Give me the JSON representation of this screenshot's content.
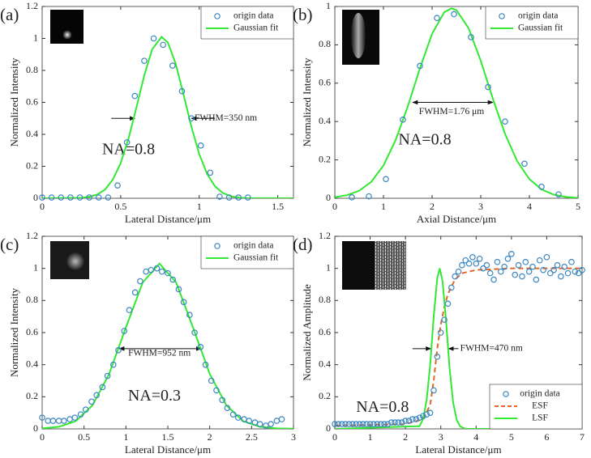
{
  "chart_data": [
    {
      "type": "scatter",
      "panel_label": "(a)",
      "xlabel": "Lateral Distance/μm",
      "ylabel": "Normalized Intensity",
      "xlim": [
        0,
        1.6
      ],
      "xticks": [
        0,
        0.5,
        1,
        1.5
      ],
      "ylim": [
        0,
        1.2
      ],
      "yticks": [
        0,
        0.2,
        0.4,
        0.6,
        0.8,
        1,
        1.2
      ],
      "legend": "upper right",
      "note": "NA=0.8",
      "fwhm_label": "FWHM=350 nm",
      "series": [
        {
          "name": "origin data",
          "kind": "marker",
          "color": "#3a86c0",
          "x": [
            0,
            0.06,
            0.12,
            0.18,
            0.24,
            0.3,
            0.36,
            0.42,
            0.48,
            0.54,
            0.59,
            0.65,
            0.71,
            0.77,
            0.83,
            0.89,
            0.95,
            1.01,
            1.07,
            1.13,
            1.19,
            1.25,
            1.31
          ],
          "values": [
            0.005,
            0.005,
            0.005,
            0.005,
            0.005,
            0.005,
            0.005,
            0.005,
            0.08,
            0.35,
            0.64,
            0.86,
            1.0,
            0.96,
            0.83,
            0.67,
            0.5,
            0.33,
            0.16,
            0.01,
            0.005,
            0.005,
            0.005
          ]
        },
        {
          "name": "Gaussian fit",
          "kind": "line",
          "color": "#33e833",
          "x": [
            0,
            0.25,
            0.3,
            0.35,
            0.4,
            0.45,
            0.5,
            0.55,
            0.6,
            0.65,
            0.7,
            0.76,
            0.8,
            0.85,
            0.9,
            0.95,
            1.0,
            1.05,
            1.1,
            1.15,
            1.2,
            1.25,
            1.3,
            1.6
          ],
          "values": [
            0,
            0.003,
            0.009,
            0.023,
            0.054,
            0.117,
            0.22,
            0.374,
            0.567,
            0.769,
            0.931,
            1.01,
            0.975,
            0.842,
            0.65,
            0.448,
            0.276,
            0.152,
            0.075,
            0.033,
            0.013,
            0.0045,
            0.001,
            0
          ]
        }
      ]
    },
    {
      "type": "scatter",
      "panel_label": "(b)",
      "xlabel": "Axial Distance/μm",
      "ylabel": "Normalized Intensity",
      "xlim": [
        0,
        5
      ],
      "xticks": [
        0,
        1,
        2,
        3,
        4,
        5
      ],
      "ylim": [
        0,
        1
      ],
      "yticks": [
        0,
        0.2,
        0.4,
        0.6,
        0.8,
        1
      ],
      "legend": "upper right",
      "note": "NA=0.8",
      "fwhm_label": "FWHM=1.76 μm",
      "series": [
        {
          "name": "origin data",
          "kind": "marker",
          "color": "#3a86c0",
          "x": [
            0.35,
            0.7,
            1.05,
            1.4,
            1.75,
            2.1,
            2.45,
            2.8,
            3.15,
            3.5,
            3.9,
            4.25,
            4.6
          ],
          "values": [
            0.005,
            0.01,
            0.1,
            0.41,
            0.69,
            0.94,
            0.96,
            0.84,
            0.58,
            0.4,
            0.18,
            0.06,
            0.02
          ]
        },
        {
          "name": "Gaussian fit",
          "kind": "line",
          "color": "#33e833",
          "x": [
            0,
            0.25,
            0.5,
            0.75,
            1,
            1.25,
            1.5,
            1.75,
            2,
            2.25,
            2.4,
            2.5,
            2.75,
            3,
            3.25,
            3.5,
            3.75,
            4,
            4.25,
            4.5,
            4.75,
            5
          ],
          "values": [
            0.006,
            0.016,
            0.039,
            0.086,
            0.171,
            0.303,
            0.479,
            0.678,
            0.858,
            0.97,
            0.99,
            0.981,
            0.887,
            0.717,
            0.518,
            0.335,
            0.193,
            0.1,
            0.046,
            0.019,
            0.007,
            0.002
          ]
        }
      ]
    },
    {
      "type": "scatter",
      "panel_label": "(c)",
      "xlabel": "Lateral Distance/μm",
      "ylabel": "Normalized Intensity",
      "xlim": [
        0,
        3
      ],
      "xticks": [
        0,
        0.5,
        1,
        1.5,
        2,
        2.5,
        3
      ],
      "ylim": [
        0,
        1.2
      ],
      "yticks": [
        0,
        0.2,
        0.4,
        0.6,
        0.8,
        1,
        1.2
      ],
      "legend": "upper right",
      "note": "NA=0.3",
      "fwhm_label": "FWHM=952 nm",
      "series": [
        {
          "name": "origin data",
          "kind": "marker",
          "color": "#3a86c0",
          "x": [
            0,
            0.07,
            0.13,
            0.2,
            0.26,
            0.33,
            0.39,
            0.46,
            0.52,
            0.59,
            0.65,
            0.72,
            0.78,
            0.85,
            0.91,
            0.98,
            1.04,
            1.11,
            1.17,
            1.24,
            1.3,
            1.37,
            1.43,
            1.5,
            1.56,
            1.63,
            1.69,
            1.76,
            1.82,
            1.89,
            1.95,
            2.02,
            2.08,
            2.15,
            2.21,
            2.28,
            2.34,
            2.41,
            2.47,
            2.54,
            2.6,
            2.67,
            2.73,
            2.8,
            2.86
          ],
          "values": [
            0.07,
            0.05,
            0.05,
            0.05,
            0.05,
            0.06,
            0.07,
            0.09,
            0.12,
            0.17,
            0.21,
            0.26,
            0.33,
            0.4,
            0.49,
            0.61,
            0.74,
            0.85,
            0.92,
            0.98,
            0.99,
            1.0,
            0.98,
            0.97,
            0.93,
            0.87,
            0.79,
            0.71,
            0.6,
            0.51,
            0.4,
            0.3,
            0.24,
            0.18,
            0.13,
            0.09,
            0.07,
            0.06,
            0.05,
            0.04,
            0.03,
            0.02,
            0.03,
            0.05,
            0.06
          ]
        },
        {
          "name": "Gaussian fit",
          "kind": "line",
          "color": "#33e833",
          "x": [
            0,
            0.2,
            0.4,
            0.6,
            0.8,
            1,
            1.2,
            1.4,
            1.6,
            1.8,
            2,
            2.2,
            2.4,
            2.6,
            2.8,
            3
          ],
          "values": [
            0.003,
            0.013,
            0.048,
            0.146,
            0.343,
            0.632,
            0.912,
            1.03,
            0.912,
            0.632,
            0.343,
            0.146,
            0.048,
            0.013,
            0.003,
            0.001
          ]
        }
      ]
    },
    {
      "type": "scatter",
      "panel_label": "(d)",
      "xlabel": "Lateral Distance/μm",
      "ylabel": "Normalized Amplitude",
      "xlim": [
        0,
        7
      ],
      "xticks": [
        0,
        1,
        2,
        3,
        4,
        5,
        6,
        7
      ],
      "ylim": [
        0,
        1.2
      ],
      "yticks": [
        0,
        0.2,
        0.4,
        0.6,
        0.8,
        1,
        1.2
      ],
      "legend": "lower right",
      "note": "NA=0.8",
      "fwhm_label": "FWHM=470 nm",
      "series": [
        {
          "name": "origin data",
          "kind": "marker",
          "color": "#3a86c0",
          "x": [
            0,
            0.1,
            0.2,
            0.3,
            0.4,
            0.5,
            0.6,
            0.7,
            0.8,
            0.9,
            1,
            1.1,
            1.2,
            1.3,
            1.4,
            1.5,
            1.6,
            1.7,
            1.8,
            1.9,
            2,
            2.1,
            2.2,
            2.3,
            2.4,
            2.5,
            2.6,
            2.7,
            2.8,
            2.9,
            3,
            3.1,
            3.2,
            3.3,
            3.4,
            3.5,
            3.6,
            3.7,
            3.8,
            3.9,
            4,
            4.1,
            4.2,
            4.3,
            4.4,
            4.5,
            4.6,
            4.7,
            4.8,
            4.9,
            5,
            5.1,
            5.2,
            5.3,
            5.4,
            5.5,
            5.6,
            5.7,
            5.8,
            5.9,
            6,
            6.1,
            6.2,
            6.3,
            6.4,
            6.5,
            6.6,
            6.7,
            6.8,
            6.9,
            7
          ],
          "values": [
            0.03,
            0.03,
            0.03,
            0.03,
            0.03,
            0.03,
            0.03,
            0.03,
            0.03,
            0.03,
            0.03,
            0.03,
            0.03,
            0.03,
            0.03,
            0.03,
            0.04,
            0.04,
            0.04,
            0.04,
            0.05,
            0.05,
            0.06,
            0.06,
            0.07,
            0.08,
            0.09,
            0.1,
            0.24,
            0.45,
            0.6,
            0.68,
            0.78,
            0.88,
            0.95,
            0.98,
            1.02,
            1.05,
            1.03,
            1.07,
            1.03,
            1.06,
            1.0,
            1.02,
            0.97,
            0.93,
            1.04,
            0.98,
            1.01,
            1.06,
            1.09,
            0.96,
            1.02,
            0.95,
            1.04,
            0.98,
            1.01,
            0.93,
            1.05,
            0.99,
            1.07,
            0.97,
            0.99,
            1.02,
            0.95,
            1.01,
            0.97,
            1.04,
            0.98,
            0.97,
            0.99
          ]
        },
        {
          "name": "ESF",
          "kind": "dashed",
          "color": "#e0662a",
          "x": [
            0,
            2,
            2.5,
            2.7,
            2.8,
            2.9,
            3,
            3.1,
            3.2,
            3.4,
            3.6,
            4,
            5,
            7
          ],
          "values": [
            0.02,
            0.03,
            0.06,
            0.15,
            0.3,
            0.5,
            0.65,
            0.76,
            0.84,
            0.93,
            0.97,
            0.99,
            1.0,
            1.0
          ]
        },
        {
          "name": "LSF",
          "kind": "line",
          "color": "#33e833",
          "x": [
            0,
            2.4,
            2.5,
            2.6,
            2.7,
            2.8,
            2.9,
            2.97,
            3.05,
            3.15,
            3.25,
            3.35,
            3.45,
            3.55,
            3.7,
            7
          ],
          "values": [
            0,
            0.017,
            0.063,
            0.18,
            0.4,
            0.7,
            0.94,
            1.0,
            0.92,
            0.67,
            0.375,
            0.164,
            0.056,
            0.015,
            0,
            0
          ]
        }
      ]
    }
  ]
}
